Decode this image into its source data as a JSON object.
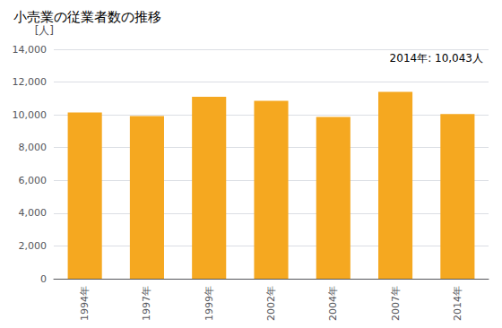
{
  "chart_data": {
    "type": "bar",
    "title": "小売業の従業者数の推移",
    "ylabel": "[人]",
    "annotation": "2014年: 10,043人",
    "categories": [
      "1994年",
      "1997年",
      "1999年",
      "2002年",
      "2004年",
      "2007年",
      "2014年"
    ],
    "values": [
      10150,
      9920,
      11100,
      10850,
      9870,
      11400,
      10043
    ],
    "color": "#F5A820",
    "ylim": [
      0,
      14000
    ],
    "yticks": [
      0,
      {
        "value": 2000,
        "label": "2,000"
      },
      {
        "value": 4000,
        "label": "4,000"
      },
      {
        "value": 6000,
        "label": "6,000"
      },
      {
        "value": 8000,
        "label": "8,000"
      },
      {
        "value": 10000,
        "label": "10,000"
      },
      {
        "value": 12000,
        "label": "12,000"
      },
      {
        "value": 14000,
        "label": "14,000"
      }
    ],
    "grid": true
  }
}
